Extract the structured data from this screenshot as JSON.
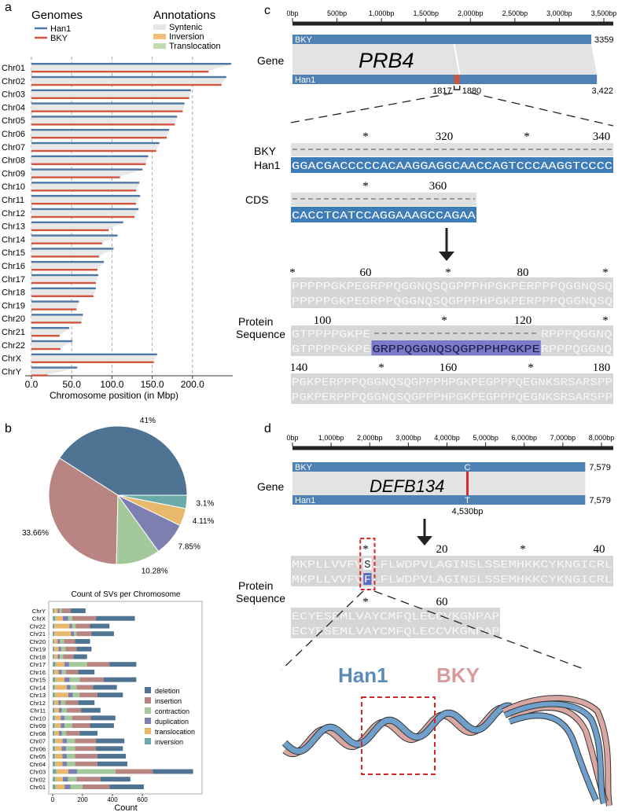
{
  "panel_labels": [
    "a",
    "b",
    "c",
    "d"
  ],
  "chart_data": [
    {
      "type": "bar",
      "orientation": "horizontal",
      "legend_title": "Genomes",
      "annotation_title": "Annotations",
      "annotations": [
        {
          "label": "Syntenic",
          "color": "#e6e6e6"
        },
        {
          "label": "Inversion",
          "color": "#f0c077"
        },
        {
          "label": "Translocation",
          "color": "#c3dbb0"
        }
      ],
      "categories": [
        "Chr01",
        "Chr02",
        "Chr03",
        "Chr04",
        "Chr05",
        "Chr06",
        "Chr07",
        "Chr08",
        "Chr09",
        "Chr10",
        "Chr11",
        "Chr12",
        "Chr13",
        "Chr14",
        "Chr15",
        "Chr16",
        "Chr17",
        "Chr18",
        "Chr19",
        "Chr20",
        "Chr21",
        "Chr22",
        "ChrX",
        "ChrY"
      ],
      "series": [
        {
          "name": "Han1",
          "color": "#4e79a7",
          "values": [
            248,
            242,
            198,
            190,
            181,
            171,
            159,
            145,
            138,
            134,
            135,
            133,
            114,
            107,
            102,
            90,
            83,
            80,
            59,
            64,
            47,
            51,
            156,
            57
          ]
        },
        {
          "name": "BKY",
          "color": "#d1553f",
          "values": [
            220,
            236,
            196,
            188,
            178,
            168,
            155,
            142,
            110,
            130,
            130,
            128,
            96,
            88,
            84,
            82,
            80,
            77,
            56,
            62,
            35,
            36,
            152,
            20
          ]
        }
      ],
      "xlim": [
        0,
        250
      ],
      "xticks": [
        {
          "value": 0,
          "label": "0.0"
        },
        {
          "value": 50,
          "label": "50.0"
        },
        {
          "value": 100,
          "label": "100.0"
        },
        {
          "value": 150,
          "label": "150.0"
        },
        {
          "value": 200,
          "label": "200.0"
        }
      ],
      "xlabel": "Chromosome position (in Mbp)",
      "grid": true
    },
    {
      "type": "pie",
      "values": [
        41,
        33.66,
        10.28,
        7.85,
        4.11,
        3.1
      ],
      "value_labels": [
        "41%",
        "33.66%",
        "10.28%",
        "7.85%",
        "4.11%",
        "3.1%"
      ],
      "colors": [
        "#4e7393",
        "#b98583",
        "#a3c99a",
        "#7d7fb0",
        "#e8b86d",
        "#6aabaa"
      ]
    },
    {
      "type": "bar",
      "stacked": true,
      "orientation": "horizontal",
      "title": "Count of SVs per Chromosome",
      "categories": [
        "Chr01",
        "Chr02",
        "Chr03",
        "Chr04",
        "Chr05",
        "Chr06",
        "Chr07",
        "Chr08",
        "Chr09",
        "Chr10",
        "Chr11",
        "Chr12",
        "Chr13",
        "Chr14",
        "Chr15",
        "Chr16",
        "Chr17",
        "Chr18",
        "Chr19",
        "Chr20",
        "Chr21",
        "Chr22",
        "ChrX",
        "ChrY"
      ],
      "series": [
        {
          "name": "deletion",
          "color": "#4e7393",
          "values": [
            230,
            200,
            270,
            200,
            190,
            180,
            190,
            120,
            160,
            165,
            130,
            110,
            170,
            160,
            220,
            110,
            180,
            90,
            100,
            100,
            150,
            130,
            260,
            100
          ]
        },
        {
          "name": "insertion",
          "color": "#b98583",
          "values": [
            180,
            160,
            250,
            150,
            150,
            140,
            140,
            90,
            120,
            125,
            95,
            85,
            120,
            110,
            160,
            80,
            150,
            70,
            75,
            75,
            100,
            95,
            160,
            60
          ]
        },
        {
          "name": "contraction",
          "color": "#a3c99a",
          "values": [
            80,
            57,
            255,
            54,
            55,
            60,
            54,
            28,
            51,
            50,
            33,
            30,
            45,
            40,
            67,
            30,
            120,
            22,
            28,
            26,
            18,
            25,
            27,
            15
          ]
        },
        {
          "name": "duplication",
          "color": "#7d7fb0",
          "values": [
            40,
            35,
            60,
            30,
            30,
            30,
            30,
            20,
            25,
            26,
            20,
            17,
            30,
            26,
            35,
            20,
            32,
            15,
            17,
            15,
            20,
            18,
            35,
            12
          ]
        },
        {
          "name": "translocation",
          "color": "#e8b86d",
          "values": [
            60,
            50,
            80,
            50,
            50,
            45,
            50,
            30,
            40,
            40,
            30,
            28,
            90,
            80,
            60,
            30,
            60,
            25,
            30,
            25,
            110,
            100,
            50,
            25
          ]
        },
        {
          "name": "inversion",
          "color": "#6aabaa",
          "values": [
            20,
            18,
            25,
            16,
            15,
            15,
            16,
            12,
            14,
            14,
            12,
            10,
            15,
            14,
            18,
            10,
            18,
            8,
            10,
            9,
            12,
            12,
            18,
            8
          ]
        }
      ],
      "xlim": [
        0,
        1000
      ],
      "xticks": [
        0,
        200,
        400,
        600
      ],
      "xlabel": "Count",
      "legend": "right"
    }
  ],
  "panel_c": {
    "xlim": [
      0,
      3500
    ],
    "xticks": [
      {
        "value": 0,
        "label": "0bp"
      },
      {
        "value": 500,
        "label": "500bp"
      },
      {
        "value": 1000,
        "label": "1,000bp"
      },
      {
        "value": 1500,
        "label": "1,500bp"
      },
      {
        "value": 2000,
        "label": "2,000bp"
      },
      {
        "value": 2500,
        "label": "2,500bp"
      },
      {
        "value": 3000,
        "label": "3,000bp"
      },
      {
        "value": 3500,
        "label": "3,500bp"
      }
    ],
    "gene_label": "Gene",
    "gene": "PRB4",
    "tracks": [
      {
        "name": "BKY",
        "length": 3359,
        "length_label": "3359"
      },
      {
        "name": "Han1",
        "length": 3422,
        "length_label": "3,422"
      }
    ],
    "region": {
      "start": 1817,
      "end": 1880
    },
    "dna": {
      "markers": [
        "*",
        "320",
        "*",
        "340"
      ],
      "rows": [
        "BKY",
        "Han1"
      ],
      "han1_seq": "GGACGACCCCCACAAGGAGGCAACCAGTCCCAAGGTCCCC",
      "cds_markers": [
        "*",
        "360"
      ],
      "cds_label": "CDS",
      "cds_seq": "CACCTCATCCAGGAAAGCCAGAA"
    },
    "protein": {
      "label_1": "Protein",
      "label_2": "Sequence",
      "block_1": {
        "markers": [
          "*",
          "60",
          "*",
          "80",
          "*"
        ],
        "line": "PPPPPGKPEGRPPQGGNQSQGPPPHPGKPERPPPQGGNQSQ"
      },
      "block_2": {
        "markers": [
          "100",
          "*",
          "120",
          "*"
        ],
        "left": "GTPPPPGKPE",
        "insert": "GRPPQGGNQSQGPPPHPGKPE",
        "right": "RPPPQGGNQ"
      },
      "block_3": {
        "markers": [
          "140",
          "*",
          "160",
          "*",
          "180"
        ],
        "line": "PGKPERPPPQGGNQSQGPPPHPGKPEGPPPQEGNKSRSARSPP"
      }
    }
  },
  "panel_d": {
    "xlim": [
      0,
      8000
    ],
    "xticks": [
      {
        "value": 0,
        "label": "0bp"
      },
      {
        "value": 1000,
        "label": "1,000bp"
      },
      {
        "value": 2000,
        "label": "2,000bp"
      },
      {
        "value": 3000,
        "label": "3,000bp"
      },
      {
        "value": 4000,
        "label": "4,000bp"
      },
      {
        "value": 5000,
        "label": "5,000bp"
      },
      {
        "value": 6000,
        "label": "6,000bp"
      },
      {
        "value": 7000,
        "label": "7,000bp"
      },
      {
        "value": 8000,
        "label": "8,000bp"
      }
    ],
    "gene_label": "Gene",
    "gene": "DEFB134",
    "tracks": [
      {
        "name": "BKY",
        "length": 7579,
        "length_label": "7,579",
        "base": "C"
      },
      {
        "name": "Han1",
        "length": 7579,
        "length_label": "7,579",
        "base": "T"
      }
    ],
    "variant": {
      "position": 4530,
      "position_label": "4,530bp"
    },
    "protein": {
      "label_1": "Protein",
      "label_2": "Sequence",
      "block_1": {
        "markers": [
          "*",
          "20",
          "*",
          "40"
        ],
        "left": "MKPLLVVFV",
        "bky_residue": "S",
        "han1_residue": "F",
        "right": "LFLWDPVLAGINSLSSEMHKKCYKNGICRL"
      },
      "block_2": {
        "markers": [
          "*",
          "60"
        ],
        "line": "ECYESEMLVAYCMFQLECCVKGNPAP"
      }
    },
    "structure_labels": [
      "Han1",
      "BKY"
    ]
  }
}
